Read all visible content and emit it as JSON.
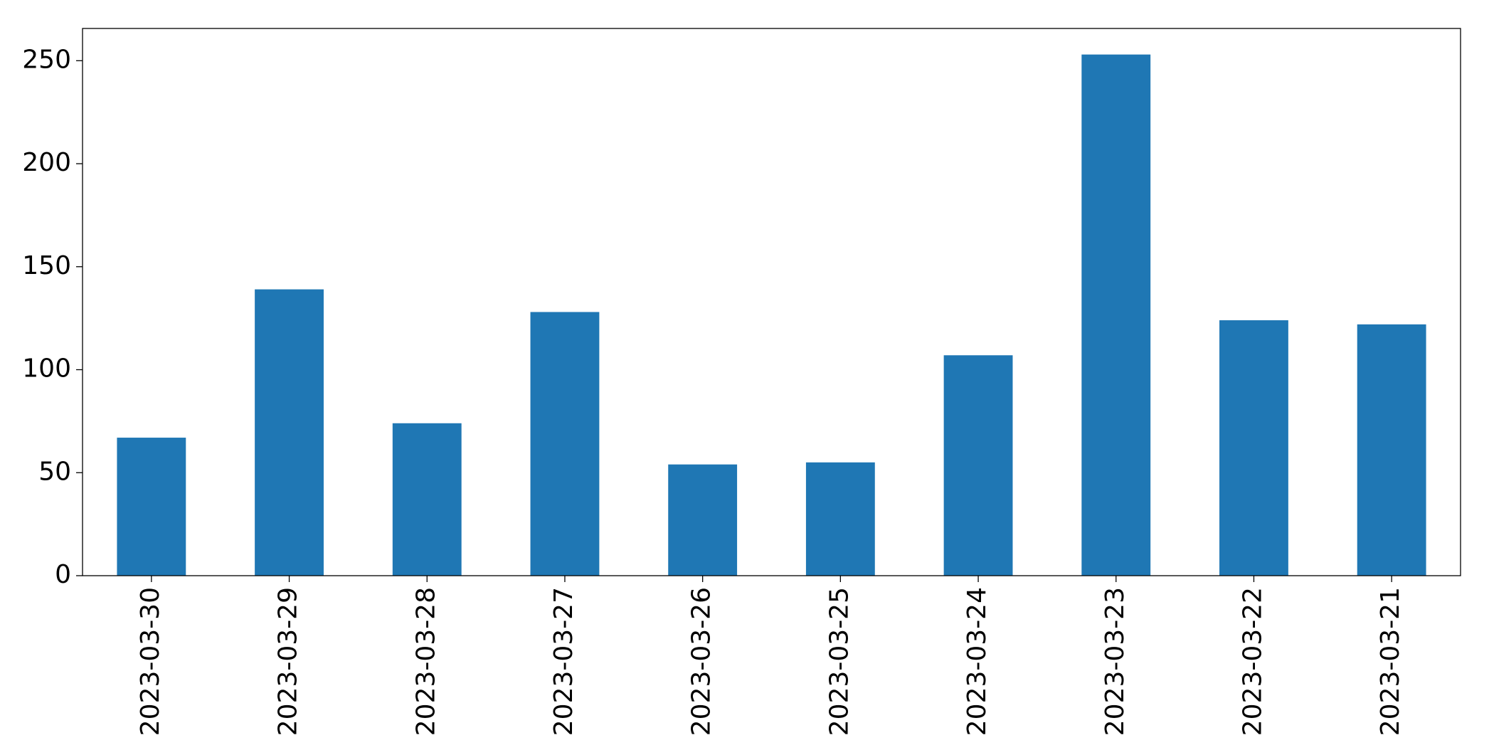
{
  "chart_data": {
    "type": "bar",
    "categories": [
      "2023-03-30",
      "2023-03-29",
      "2023-03-28",
      "2023-03-27",
      "2023-03-26",
      "2023-03-25",
      "2023-03-24",
      "2023-03-23",
      "2023-03-22",
      "2023-03-21"
    ],
    "values": [
      67,
      139,
      74,
      128,
      54,
      55,
      107,
      253,
      124,
      122
    ],
    "color": "#1f77b4",
    "ylim": [
      0,
      265.65
    ],
    "yticks": [
      0,
      50,
      100,
      150,
      200,
      250
    ],
    "grid": false
  }
}
